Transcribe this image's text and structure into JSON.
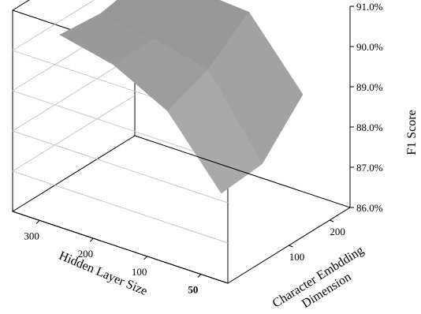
{
  "chart_data": {
    "type": "surface3d",
    "zlabel": "F1 Score",
    "zlim": [
      0.86,
      0.91
    ],
    "z_ticks": [
      "86.0%",
      "87.0%",
      "88.0%",
      "89.0%",
      "90.0%",
      "91.0%"
    ],
    "x_axis": {
      "label": "Hidden Layer Size",
      "ticks": [
        "300",
        "200",
        "100",
        "50"
      ],
      "values": [
        300,
        200,
        100,
        50
      ]
    },
    "y_axis": {
      "label": "Character Embdding Dimension",
      "label_lines": [
        "Character Embdding",
        "Dimension"
      ],
      "ticks": [
        "50",
        "100",
        "200"
      ],
      "values": [
        50,
        100,
        200
      ]
    },
    "grid": true,
    "surface": {
      "hidden_layer_size": [
        300,
        200,
        100,
        50
      ],
      "char_embedding_dim": [
        50,
        100,
        200
      ],
      "f1": [
        [
          0.903,
          0.902,
          0.904
        ],
        [
          0.9,
          0.9,
          0.906
        ],
        [
          0.893,
          0.897,
          0.905
        ],
        [
          0.877,
          0.878,
          0.889
        ]
      ]
    },
    "colors": {
      "surface_high": "#909090",
      "surface_low": "#c4c4c4",
      "frame": "#000000",
      "gridline": "#c8c8c8"
    }
  }
}
